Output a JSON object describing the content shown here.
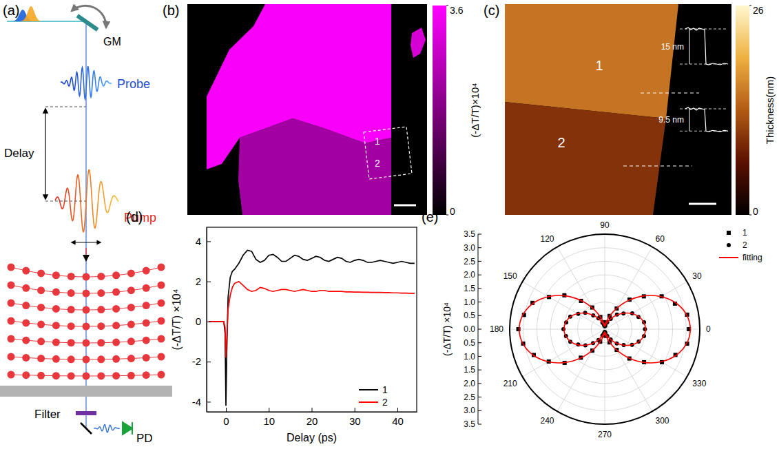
{
  "chart_data": [
    {
      "type": "diagram",
      "title": "(a)",
      "annotations": [
        "GM",
        "Probe",
        "Delay",
        "Pump",
        "Filter",
        "PD"
      ]
    },
    {
      "type": "heatmap",
      "title": "(b)",
      "categories": [
        "1",
        "2",
        null
      ],
      "values": [
        3.5,
        2.3,
        3.0
      ],
      "colorbar_label": "(-ΔT/T)×10⁴",
      "colorbar_range": [
        0,
        3.6
      ],
      "colorbar_ticks": [
        0,
        3.6
      ]
    },
    {
      "type": "heatmap",
      "title": "(c)",
      "categories": [
        "1",
        "2"
      ],
      "values": [
        15,
        9.5
      ],
      "value_labels": [
        "15 nm",
        "9.5 nm"
      ],
      "colorbar_label": "Thickness(nm)",
      "colorbar_range": [
        0,
        26
      ],
      "colorbar_ticks": [
        0,
        26
      ]
    },
    {
      "type": "line",
      "title": "(d)",
      "x_label": "Delay (ps)",
      "y_label": "(-ΔT/T) ×10⁴",
      "x": [
        -4,
        -3,
        -2,
        -1,
        -0.5,
        -0.2,
        0,
        0.2,
        0.5,
        1,
        1.5,
        2,
        3,
        4,
        5,
        6,
        7,
        8,
        9,
        10,
        11,
        12,
        13,
        14,
        15,
        16,
        17,
        18,
        19,
        20,
        21,
        22,
        23,
        24,
        25,
        26,
        27,
        28,
        29,
        30,
        31,
        32,
        33,
        34,
        35,
        36,
        37,
        38,
        39,
        40,
        41,
        42,
        43,
        44
      ],
      "series": [
        {
          "name": "1",
          "color": "#000000",
          "values": [
            0,
            0,
            0,
            0,
            0,
            -0.6,
            -4.2,
            -1.5,
            1.2,
            2.2,
            2.5,
            2.6,
            2.9,
            3.3,
            3.55,
            3.5,
            3.1,
            2.95,
            3.05,
            3.3,
            3.35,
            3.2,
            3.0,
            3.0,
            3.15,
            3.3,
            3.25,
            3.1,
            3.05,
            3.15,
            3.25,
            3.2,
            3.05,
            3.0,
            3.1,
            3.2,
            3.15,
            3.0,
            2.95,
            3.05,
            3.1,
            3.05,
            2.95,
            2.95,
            3.0,
            3.05,
            3.0,
            2.95,
            2.9,
            2.95,
            3.0,
            2.95,
            2.9,
            2.9
          ]
        },
        {
          "name": "2",
          "color": "#ff0000",
          "values": [
            0,
            0,
            0,
            0,
            0,
            -0.3,
            -1.8,
            -0.8,
            0.6,
            1.3,
            1.7,
            1.9,
            2.0,
            1.8,
            1.6,
            1.5,
            1.55,
            1.7,
            1.65,
            1.55,
            1.5,
            1.55,
            1.6,
            1.6,
            1.55,
            1.5,
            1.55,
            1.6,
            1.55,
            1.5,
            1.5,
            1.55,
            1.55,
            1.5,
            1.5,
            1.5,
            1.5,
            1.48,
            1.48,
            1.47,
            1.47,
            1.46,
            1.46,
            1.45,
            1.45,
            1.45,
            1.44,
            1.44,
            1.43,
            1.43,
            1.42,
            1.42,
            1.41,
            1.4
          ]
        }
      ],
      "xlim": [
        -4.5,
        44.5
      ],
      "xticks": [
        0,
        10,
        20,
        30,
        40
      ],
      "ylim": [
        -4.5,
        4.7
      ],
      "yticks": [
        -4,
        -2,
        0,
        2,
        4
      ],
      "legend": "lower right"
    },
    {
      "type": "polar",
      "title": "(e)",
      "y_label": "(-ΔT/T) ×10⁴",
      "x": [
        0,
        10,
        20,
        30,
        40,
        50,
        60,
        70,
        80,
        90,
        100,
        110,
        120,
        130,
        140,
        150,
        160,
        170,
        180,
        190,
        200,
        210,
        220,
        230,
        240,
        250,
        260,
        270,
        280,
        290,
        300,
        310,
        320,
        330,
        340,
        350
      ],
      "series": [
        {
          "name": "1",
          "type": "scatter",
          "marker": "square",
          "color": "#000000",
          "values": [
            3.1,
            3.08,
            2.75,
            2.42,
            1.88,
            1.42,
            0.88,
            0.52,
            0.25,
            0.16,
            0.26,
            0.48,
            0.92,
            1.36,
            1.94,
            2.37,
            2.83,
            3.02,
            3.18,
            3.05,
            2.78,
            2.38,
            1.93,
            1.37,
            0.91,
            0.49,
            0.23,
            0.15,
            0.25,
            0.52,
            0.88,
            1.41,
            1.89,
            2.43,
            2.77,
            3.08
          ]
        },
        {
          "name": "2",
          "type": "scatter",
          "marker": "circle",
          "color": "#000000",
          "values": [
            1.48,
            1.47,
            1.32,
            1.17,
            0.9,
            0.7,
            0.44,
            0.27,
            0.13,
            0.11,
            0.15,
            0.25,
            0.46,
            0.66,
            0.94,
            1.13,
            1.35,
            1.44,
            1.52,
            1.45,
            1.35,
            1.13,
            0.93,
            0.67,
            0.46,
            0.25,
            0.15,
            0.1,
            0.13,
            0.27,
            0.44,
            0.69,
            0.91,
            1.16,
            1.33,
            1.47
          ]
        },
        {
          "name": "fitting",
          "type": "line",
          "color": "#ff0000",
          "curves": [
            [
              3.15,
              3.06,
              2.8,
              2.4,
              1.91,
              1.39,
              0.9,
              0.5,
              0.24,
              0.15,
              0.24,
              0.5,
              0.9,
              1.39,
              1.91,
              2.4,
              2.8,
              3.06,
              3.15,
              3.06,
              2.8,
              2.4,
              1.91,
              1.39,
              0.9,
              0.5,
              0.24,
              0.15,
              0.24,
              0.5,
              0.9,
              1.39,
              1.91,
              2.4,
              2.8,
              3.06
            ],
            [
              1.5,
              1.46,
              1.34,
              1.15,
              0.92,
              0.68,
              0.45,
              0.26,
              0.14,
              0.1,
              0.14,
              0.26,
              0.45,
              0.68,
              0.92,
              1.15,
              1.34,
              1.46,
              1.5,
              1.46,
              1.34,
              1.15,
              0.92,
              0.68,
              0.45,
              0.26,
              0.14,
              0.1,
              0.14,
              0.26,
              0.45,
              0.68,
              0.92,
              1.15,
              1.34,
              1.46
            ]
          ]
        }
      ],
      "xticks": [
        0,
        30,
        60,
        90,
        120,
        150,
        180,
        210,
        240,
        270,
        300,
        330
      ],
      "ylim": [
        0,
        3.5
      ],
      "yticks": [
        {
          "value": 0,
          "label": "0.0"
        },
        0.5,
        {
          "value": 1,
          "label": "1.0"
        },
        1.5,
        {
          "value": 2,
          "label": "2.0"
        },
        2.5,
        {
          "value": 3,
          "label": "3.0"
        },
        3.5
      ],
      "grid": true,
      "legend": "upper right"
    }
  ]
}
